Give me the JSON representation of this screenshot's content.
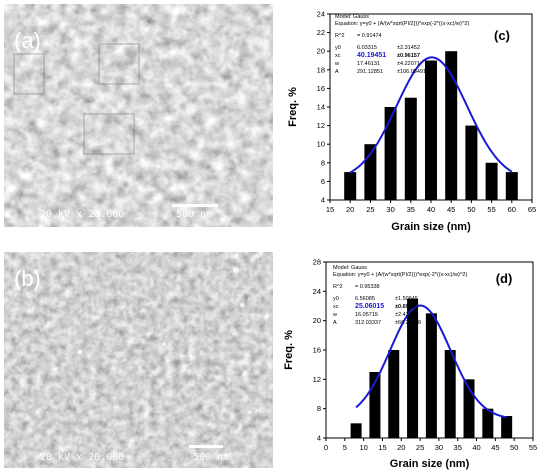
{
  "micrographs": [
    {
      "letter": "(a)",
      "caption": "20 kV x 20.000",
      "scale_label": "500 nm"
    },
    {
      "letter": "(b)",
      "caption": "20 kV x 20.000",
      "scale_label": "500 nm"
    }
  ],
  "chart_data": [
    {
      "type": "bar",
      "panel_label": "(c)",
      "xlabel": "Grain size (nm)",
      "ylabel": "Freq. %",
      "x": [
        20,
        25,
        30,
        35,
        40,
        45,
        50,
        55,
        60
      ],
      "values": [
        7,
        10,
        14,
        15,
        19,
        20,
        12,
        8,
        7
      ],
      "xlim": [
        15,
        65
      ],
      "ylim": [
        4,
        24
      ],
      "xticks": [
        15,
        20,
        25,
        30,
        35,
        40,
        45,
        50,
        55,
        60,
        65
      ],
      "yticks": [
        4,
        6,
        8,
        10,
        12,
        14,
        16,
        18,
        20,
        22,
        24
      ],
      "fit": {
        "type": "gauss",
        "y0": 6.03315,
        "xc": 40.19451,
        "w": 17.46131,
        "A": 291.12851
      },
      "info": {
        "model": "Model: Gauss",
        "equation": "Equation: y=y0 + (A/(w*sqrt(PI/2)))*exp(-2*((x-xc)/w)^2)",
        "r2_label": "R^2",
        "r2_value": "= 0.91474",
        "params": [
          {
            "name": "y0",
            "value": "6.03315",
            "err": "±2.31452",
            "highlight": false
          },
          {
            "name": "xc",
            "value": "40.19451",
            "err": "±0.96157",
            "highlight": true
          },
          {
            "name": "w",
            "value": "17.46131",
            "err": "±4.22071",
            "highlight": false
          },
          {
            "name": "A",
            "value": "291.12851",
            "err": "±106.05491",
            "highlight": false
          }
        ]
      },
      "colors": {
        "bar": "#000000",
        "fit": "#1a1ad4",
        "highlight": "#1a1ad4"
      }
    },
    {
      "type": "bar",
      "panel_label": "(d)",
      "xlabel": "Grain size (nm)",
      "ylabel": "Freq. %",
      "x": [
        8,
        13,
        18,
        23,
        28,
        33,
        38,
        43,
        48
      ],
      "values": [
        6,
        13,
        16,
        23,
        21,
        16,
        12,
        8,
        7
      ],
      "xlim": [
        0,
        55
      ],
      "ylim": [
        4,
        28
      ],
      "xticks": [
        0,
        5,
        10,
        15,
        20,
        25,
        30,
        35,
        40,
        45,
        50,
        55
      ],
      "yticks": [
        4,
        8,
        12,
        16,
        20,
        24,
        28
      ],
      "fit": {
        "type": "gauss",
        "y0": 6.56085,
        "xc": 25.06015,
        "w": 16.05715,
        "A": 312.03337
      },
      "info": {
        "model": "Model: Gauss",
        "equation": "Equation: y=y0 + (A/(w*sqrt(PI/2)))*exp(-2*((x-xc)/w)^2)",
        "r2_label": "R^2",
        "r2_value": "= 0.95338",
        "params": [
          {
            "name": "y0",
            "value": "6.56085",
            "err": "±1.50645",
            "highlight": false
          },
          {
            "name": "xc",
            "value": "25.06015",
            "err": "±0.69084",
            "highlight": true
          },
          {
            "name": "w",
            "value": "16.05715",
            "err": "±2.43103",
            "highlight": false
          },
          {
            "name": "A",
            "value": "312.03337",
            "err": "±66.21998",
            "highlight": false
          }
        ]
      },
      "colors": {
        "bar": "#000000",
        "fit": "#1a1ad4",
        "highlight": "#1a1ad4"
      }
    }
  ]
}
